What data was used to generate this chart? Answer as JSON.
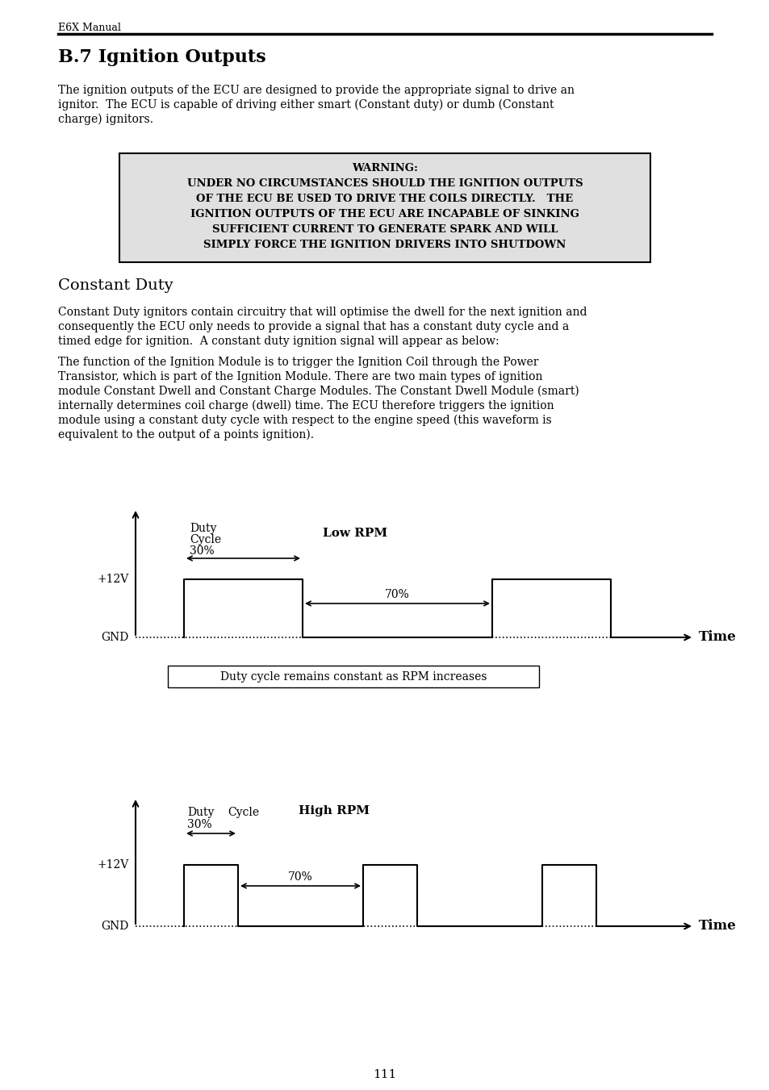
{
  "page_header": "E6X Manual",
  "title": "B.7 Ignition Outputs",
  "para1_lines": [
    "The ignition outputs of the ECU are designed to provide the appropriate signal to drive an",
    "ignitor.  The ECU is capable of driving either smart (Constant duty) or dumb (Constant",
    "charge) ignitors."
  ],
  "warning_lines": [
    "WARNING:",
    "UNDER NO CIRCUMSTANCES SHOULD THE IGNITION OUTPUTS",
    "OF THE ECU BE USED TO DRIVE THE COILS DIRECTLY.   THE",
    "IGNITION OUTPUTS OF THE ECU ARE INCAPABLE OF SINKING",
    "SUFFICIENT CURRENT TO GENERATE SPARK AND WILL",
    "SIMPLY FORCE THE IGNITION DRIVERS INTO SHUTDOWN"
  ],
  "section_title": "Constant Duty",
  "para2_lines": [
    "Constant Duty ignitors contain circuitry that will optimise the dwell for the next ignition and",
    "consequently the ECU only needs to provide a signal that has a constant duty cycle and a",
    "timed edge for ignition.  A constant duty ignition signal will appear as below:"
  ],
  "para3_lines": [
    "The function of the Ignition Module is to trigger the Ignition Coil through the Power",
    "Transistor, which is part of the Ignition Module. There are two main types of ignition",
    "module Constant Dwell and Constant Charge Modules. The Constant Dwell Module (smart)",
    "internally determines coil charge (dwell) time. The ECU therefore triggers the ignition",
    "module using a constant duty cycle with respect to the engine speed (this waveform is",
    "equivalent to the output of a points ignition)."
  ],
  "page_number": "111",
  "bg_color": "#ffffff",
  "text_color": "#000000",
  "warning_bg": "#e0e0e0"
}
